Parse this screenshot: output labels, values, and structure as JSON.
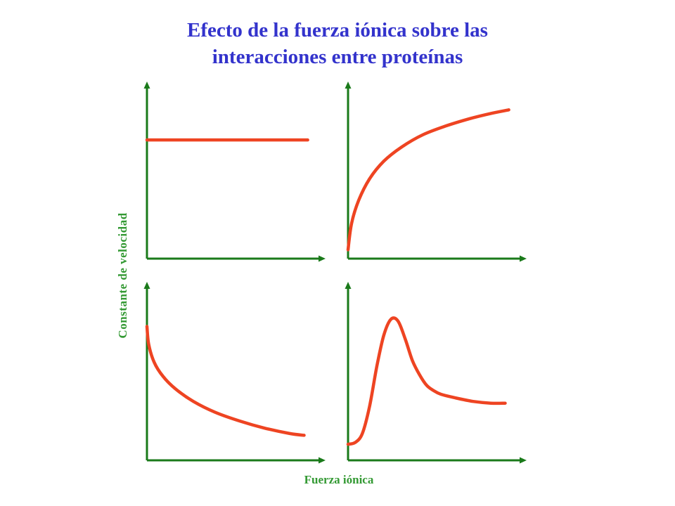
{
  "title": {
    "line1": "Efecto de la fuerza iónica sobre las",
    "line2": "interacciones entre proteínas"
  },
  "colors": {
    "title": "#3333cc",
    "axis": "#1a7a1a",
    "label": "#339933",
    "curve": "#ee4422"
  },
  "chart_data": {
    "type": "line",
    "xlabel": "Fuerza iónica",
    "ylabel": "Constante de velocidad",
    "grid": false,
    "legend": "none",
    "panels": [
      {
        "position": "top-left",
        "shape": "constant",
        "xlim": [
          0,
          1
        ],
        "ylim": [
          0,
          1
        ],
        "series": [
          {
            "x": [
              0,
              0.9
            ],
            "y": [
              0.67,
              0.67
            ]
          }
        ]
      },
      {
        "position": "top-right",
        "shape": "increasing-saturating",
        "xlim": [
          0,
          1
        ],
        "ylim": [
          0,
          1
        ],
        "series": [
          {
            "x": [
              0,
              0.02,
              0.06,
              0.12,
              0.2,
              0.3,
              0.42,
              0.55,
              0.68,
              0.8,
              0.9
            ],
            "y": [
              0.05,
              0.2,
              0.33,
              0.45,
              0.55,
              0.63,
              0.7,
              0.75,
              0.79,
              0.82,
              0.84
            ]
          }
        ]
      },
      {
        "position": "bottom-left",
        "shape": "decreasing",
        "xlim": [
          0,
          1
        ],
        "ylim": [
          0,
          1
        ],
        "series": [
          {
            "x": [
              0,
              0.01,
              0.04,
              0.09,
              0.16,
              0.26,
              0.38,
              0.52,
              0.66,
              0.8,
              0.88
            ],
            "y": [
              0.75,
              0.65,
              0.55,
              0.47,
              0.4,
              0.33,
              0.27,
              0.22,
              0.18,
              0.15,
              0.14
            ]
          }
        ]
      },
      {
        "position": "bottom-right",
        "shape": "peak",
        "xlim": [
          0,
          1
        ],
        "ylim": [
          0,
          1
        ],
        "series": [
          {
            "x": [
              0,
              0.04,
              0.08,
              0.12,
              0.16,
              0.2,
              0.24,
              0.28,
              0.32,
              0.36,
              0.4,
              0.44,
              0.48,
              0.52,
              0.6,
              0.7,
              0.8,
              0.88
            ],
            "y": [
              0.09,
              0.1,
              0.15,
              0.3,
              0.52,
              0.7,
              0.79,
              0.78,
              0.68,
              0.56,
              0.48,
              0.42,
              0.39,
              0.37,
              0.35,
              0.33,
              0.32,
              0.32
            ]
          }
        ]
      }
    ]
  }
}
